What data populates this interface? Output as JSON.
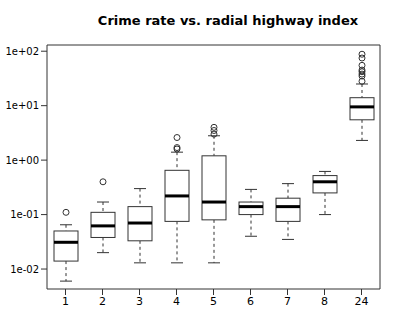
{
  "chart_data": {
    "type": "box",
    "title": "Crime rate vs. radial highway index",
    "categories": [
      "1",
      "2",
      "3",
      "4",
      "5",
      "6",
      "7",
      "8",
      "24"
    ],
    "boxes": [
      {
        "min": 0.006,
        "q1": 0.014,
        "median": 0.031,
        "q3": 0.05,
        "max": 0.065,
        "outliers": [
          0.11
        ]
      },
      {
        "min": 0.02,
        "q1": 0.038,
        "median": 0.062,
        "q3": 0.11,
        "max": 0.17,
        "outliers": [
          0.4
        ]
      },
      {
        "min": 0.013,
        "q1": 0.033,
        "median": 0.07,
        "q3": 0.14,
        "max": 0.3,
        "outliers": []
      },
      {
        "min": 0.013,
        "q1": 0.075,
        "median": 0.22,
        "q3": 0.65,
        "max": 1.4,
        "outliers": [
          1.6,
          1.7,
          2.6
        ]
      },
      {
        "min": 0.013,
        "q1": 0.08,
        "median": 0.17,
        "q3": 1.2,
        "max": 2.8,
        "outliers": [
          3.0,
          3.5,
          4.0
        ]
      },
      {
        "min": 0.04,
        "q1": 0.1,
        "median": 0.14,
        "q3": 0.17,
        "max": 0.29,
        "outliers": []
      },
      {
        "min": 0.035,
        "q1": 0.075,
        "median": 0.14,
        "q3": 0.2,
        "max": 0.37,
        "outliers": []
      },
      {
        "min": 0.1,
        "q1": 0.25,
        "median": 0.4,
        "q3": 0.52,
        "max": 0.62,
        "outliers": []
      },
      {
        "min": 2.3,
        "q1": 5.5,
        "median": 9.5,
        "q3": 14,
        "max": 25,
        "outliers": [
          28,
          35,
          38,
          42,
          45,
          55,
          75,
          88
        ]
      }
    ],
    "log": "y",
    "ylim": [
      0.0043,
      130
    ],
    "yticks": [
      {
        "value": 0.01,
        "label": "1e-02"
      },
      {
        "value": 0.1,
        "label": "1e-01"
      },
      {
        "value": 1,
        "label": "1e+00"
      },
      {
        "value": 10,
        "label": "1e+01"
      },
      {
        "value": 100,
        "label": "1e+02"
      }
    ],
    "grid": false
  }
}
